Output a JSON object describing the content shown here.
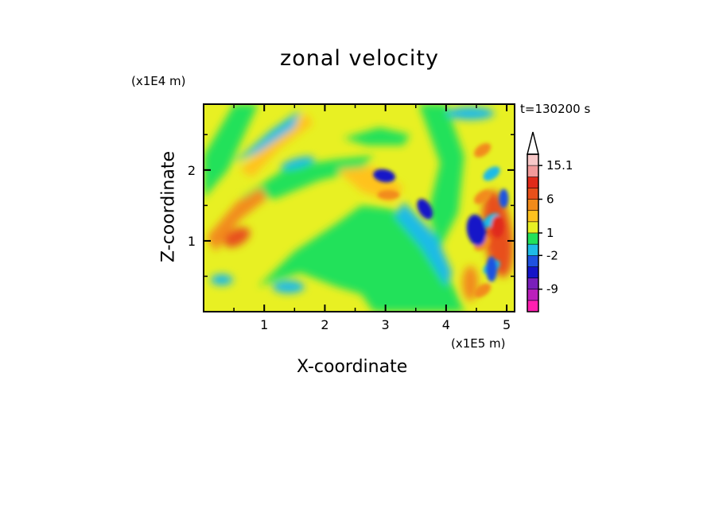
{
  "chart_data": {
    "type": "heatmap",
    "title": "zonal velocity",
    "xlabel": "X-coordinate",
    "ylabel": "Z-coordinate",
    "x_scale_label": "(x1E5 m)",
    "y_scale_label": "(x1E4 m)",
    "time_label": "t=130200 s",
    "xlim": [
      0,
      5.13
    ],
    "ylim": [
      0,
      2.93
    ],
    "x_ticks": [
      "1",
      "2",
      "3",
      "4",
      "5"
    ],
    "y_ticks": [
      "1",
      "2"
    ],
    "colorbar": {
      "tick_labels": [
        "15.1",
        "6",
        "1",
        "-2",
        "-9"
      ],
      "extend": "max",
      "levels": [
        {
          "color": "#ff1fb0"
        },
        {
          "color": "#bb1fbb"
        },
        {
          "color": "#7a1fbb"
        },
        {
          "color": "#1414c8"
        },
        {
          "color": "#1f52e0"
        },
        {
          "color": "#1fbbe6"
        },
        {
          "color": "#22e15a"
        },
        {
          "color": "#e8f023"
        },
        {
          "color": "#ffc21f"
        },
        {
          "color": "#f28b1a"
        },
        {
          "color": "#e8501a"
        },
        {
          "color": "#e02a1a"
        },
        {
          "color": "#f29a9a"
        },
        {
          "color": "#f8c8c8"
        }
      ]
    },
    "dominant_field_color": "#e8f023",
    "features": [
      {
        "x": 2.98,
        "z": 1.92,
        "value": "min",
        "color": "#1414c8"
      },
      {
        "x": 3.65,
        "z": 1.45,
        "value": "min",
        "color": "#1414c8"
      },
      {
        "x": 4.55,
        "z": 1.1,
        "value": "min",
        "color": "#1414c8"
      },
      {
        "x": 3.05,
        "z": 1.65,
        "value": "max",
        "color": "#f28b1a"
      },
      {
        "x": 4.85,
        "z": 1.2,
        "value": "max",
        "color": "#e8501a"
      },
      {
        "x": 0.5,
        "z": 1.2,
        "value": "max",
        "color": "#f28b1a"
      }
    ]
  }
}
